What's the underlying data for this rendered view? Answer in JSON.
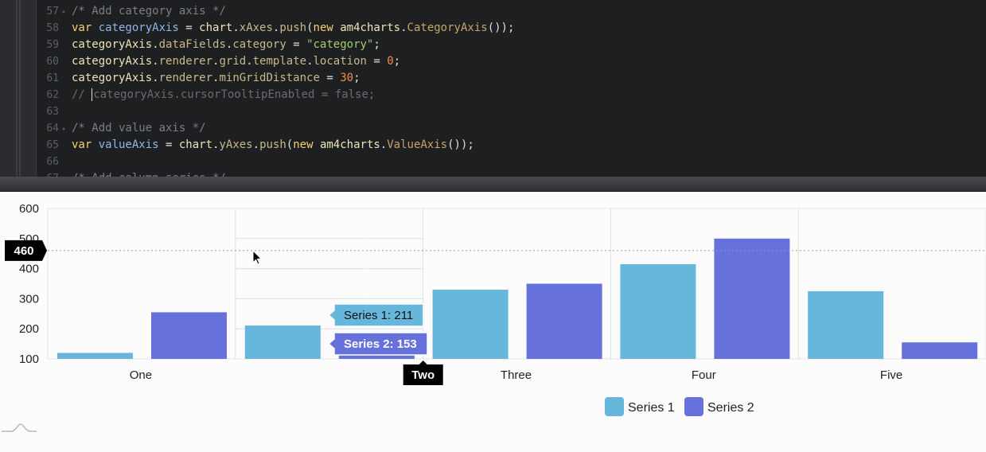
{
  "editor": {
    "lines": [
      {
        "num": "57",
        "fold": true,
        "tokens": [
          [
            "cm",
            "/* Add category axis */"
          ]
        ]
      },
      {
        "num": "58",
        "fold": false,
        "tokens": [
          [
            "kw",
            "var "
          ],
          [
            "var",
            "categoryAxis"
          ],
          [
            "p",
            " = "
          ],
          [
            "id",
            "chart"
          ],
          [
            "p",
            "."
          ],
          [
            "prop",
            "xAxes"
          ],
          [
            "p",
            "."
          ],
          [
            "prop",
            "push"
          ],
          [
            "p",
            "("
          ],
          [
            "kw",
            "new "
          ],
          [
            "id",
            "am4charts"
          ],
          [
            "p",
            "."
          ],
          [
            "cls",
            "CategoryAxis"
          ],
          [
            "p",
            "());"
          ]
        ]
      },
      {
        "num": "59",
        "fold": false,
        "tokens": [
          [
            "id",
            "categoryAxis"
          ],
          [
            "p",
            "."
          ],
          [
            "prop",
            "dataFields"
          ],
          [
            "p",
            "."
          ],
          [
            "prop",
            "category"
          ],
          [
            "p",
            " = "
          ],
          [
            "str",
            "\"category\""
          ],
          [
            "p",
            ";"
          ]
        ]
      },
      {
        "num": "60",
        "fold": false,
        "tokens": [
          [
            "id",
            "categoryAxis"
          ],
          [
            "p",
            "."
          ],
          [
            "prop",
            "renderer"
          ],
          [
            "p",
            "."
          ],
          [
            "prop",
            "grid"
          ],
          [
            "p",
            "."
          ],
          [
            "prop",
            "template"
          ],
          [
            "p",
            "."
          ],
          [
            "prop",
            "location"
          ],
          [
            "p",
            " = "
          ],
          [
            "num",
            "0"
          ],
          [
            "p",
            ";"
          ]
        ]
      },
      {
        "num": "61",
        "fold": false,
        "tokens": [
          [
            "id",
            "categoryAxis"
          ],
          [
            "p",
            "."
          ],
          [
            "prop",
            "renderer"
          ],
          [
            "p",
            "."
          ],
          [
            "prop",
            "minGridDistance"
          ],
          [
            "p",
            " = "
          ],
          [
            "num",
            "30"
          ],
          [
            "p",
            ";"
          ]
        ]
      },
      {
        "num": "62",
        "fold": false,
        "caret": true,
        "tokens": [
          [
            "dim",
            "// "
          ],
          [
            "caret",
            ""
          ],
          [
            "dim",
            "categoryAxis.cursorTooltipEnabled = false;"
          ]
        ]
      },
      {
        "num": "63",
        "fold": false,
        "tokens": []
      },
      {
        "num": "64",
        "fold": true,
        "tokens": [
          [
            "cm",
            "/* Add value axis */"
          ]
        ]
      },
      {
        "num": "65",
        "fold": false,
        "tokens": [
          [
            "kw",
            "var "
          ],
          [
            "var",
            "valueAxis"
          ],
          [
            "p",
            " = "
          ],
          [
            "id",
            "chart"
          ],
          [
            "p",
            "."
          ],
          [
            "prop",
            "yAxes"
          ],
          [
            "p",
            "."
          ],
          [
            "prop",
            "push"
          ],
          [
            "p",
            "("
          ],
          [
            "kw",
            "new "
          ],
          [
            "id",
            "am4charts"
          ],
          [
            "p",
            "."
          ],
          [
            "cls",
            "ValueAxis"
          ],
          [
            "p",
            "());"
          ]
        ]
      },
      {
        "num": "66",
        "fold": false,
        "tokens": []
      },
      {
        "num": "67",
        "fold": false,
        "tokens": [
          [
            "cm",
            "/* Add column series */"
          ]
        ]
      }
    ]
  },
  "chart_data": {
    "type": "bar",
    "categories": [
      "One",
      "Two",
      "Three",
      "Four",
      "Five"
    ],
    "series": [
      {
        "name": "Series 1",
        "color": "#67b7dc",
        "values": [
          120,
          211,
          330,
          415,
          325
        ]
      },
      {
        "name": "Series 2",
        "color": "#6771dc",
        "values": [
          255,
          153,
          350,
          500,
          155
        ]
      }
    ],
    "ylim": [
      100,
      600
    ],
    "yticks": [
      "100",
      "200",
      "300",
      "400",
      "500",
      "600"
    ],
    "cursor_value": "460",
    "cursor_y": 460,
    "hovered_category": "Two",
    "tooltips": [
      "Series 1: 211",
      "Series 2: 153"
    ],
    "legend": [
      "Series 1",
      "Series 2"
    ],
    "legend_position": "bottom",
    "grid": true
  }
}
